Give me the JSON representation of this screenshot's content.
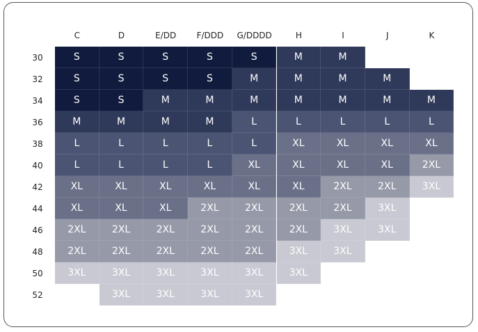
{
  "table": {
    "columns": [
      "C",
      "D",
      "E/DD",
      "F/DDD",
      "G/DDDD",
      "H",
      "I",
      "J",
      "K"
    ],
    "rows": [
      {
        "label": "30",
        "cells": [
          "S",
          "S",
          "S",
          "S",
          "S",
          "M",
          "M",
          null,
          null
        ]
      },
      {
        "label": "32",
        "cells": [
          "S",
          "S",
          "S",
          "S",
          "M",
          "M",
          "M",
          "M",
          null
        ]
      },
      {
        "label": "34",
        "cells": [
          "S",
          "S",
          "M",
          "M",
          "M",
          "M",
          "M",
          "M",
          "M"
        ]
      },
      {
        "label": "36",
        "cells": [
          "M",
          "M",
          "M",
          "M",
          "L",
          "L",
          "L",
          "L",
          "L"
        ]
      },
      {
        "label": "38",
        "cells": [
          "L",
          "L",
          "L",
          "L",
          "L",
          "XL",
          "XL",
          "XL",
          "XL"
        ]
      },
      {
        "label": "40",
        "cells": [
          "L",
          "L",
          "L",
          "L",
          "XL",
          "XL",
          "XL",
          "XL",
          "2XL"
        ]
      },
      {
        "label": "42",
        "cells": [
          "XL",
          "XL",
          "XL",
          "XL",
          "XL",
          "XL",
          "2XL",
          "2XL",
          "3XL"
        ]
      },
      {
        "label": "44",
        "cells": [
          "XL",
          "XL",
          "XL",
          "2XL",
          "2XL",
          "2XL",
          "2XL",
          "3XL",
          null
        ]
      },
      {
        "label": "46",
        "cells": [
          "2XL",
          "2XL",
          "2XL",
          "2XL",
          "2XL",
          "2XL",
          "3XL",
          "3XL",
          null
        ]
      },
      {
        "label": "48",
        "cells": [
          "2XL",
          "2XL",
          "2XL",
          "2XL",
          "2XL",
          "3XL",
          "3XL",
          null,
          null
        ]
      },
      {
        "label": "50",
        "cells": [
          "3XL",
          "3XL",
          "3XL",
          "3XL",
          "3XL",
          "3XL",
          null,
          null,
          null
        ]
      },
      {
        "label": "52",
        "cells": [
          null,
          "3XL",
          "3XL",
          "3XL",
          "3XL",
          null,
          null,
          null,
          null
        ]
      }
    ],
    "colors": {
      "S": "#111b3e",
      "M": "#2f3959",
      "L": "#4b5472",
      "XL": "#6a7088",
      "2XL": "#9599a8",
      "3XL": "#c8c9d2"
    }
  }
}
